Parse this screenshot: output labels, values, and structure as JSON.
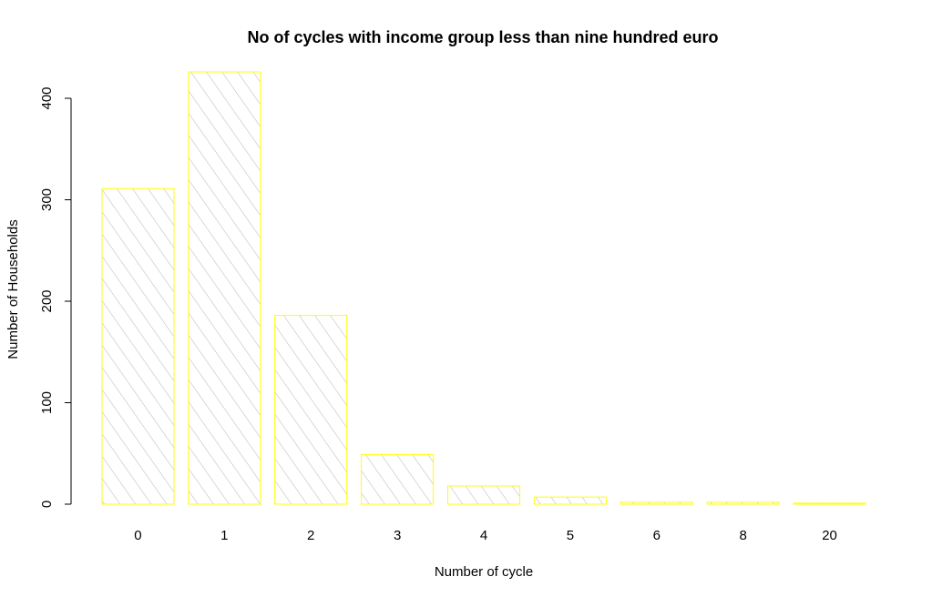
{
  "chart_data": {
    "type": "bar",
    "title": "No of cycles with income group less than nine hundred euro",
    "xlabel": "Number of cycle",
    "ylabel": "Number of Households",
    "categories": [
      "0",
      "1",
      "2",
      "3",
      "4",
      "5",
      "6",
      "8",
      "20"
    ],
    "values": [
      311,
      426,
      186,
      49,
      18,
      7,
      2,
      2,
      1
    ],
    "ylim": [
      0,
      430
    ],
    "yticks": [
      0,
      100,
      200,
      300,
      400
    ],
    "bar_border_color": "#ffff00",
    "hatch_color": "#b4b4b4",
    "grid": false,
    "legend": "none"
  }
}
